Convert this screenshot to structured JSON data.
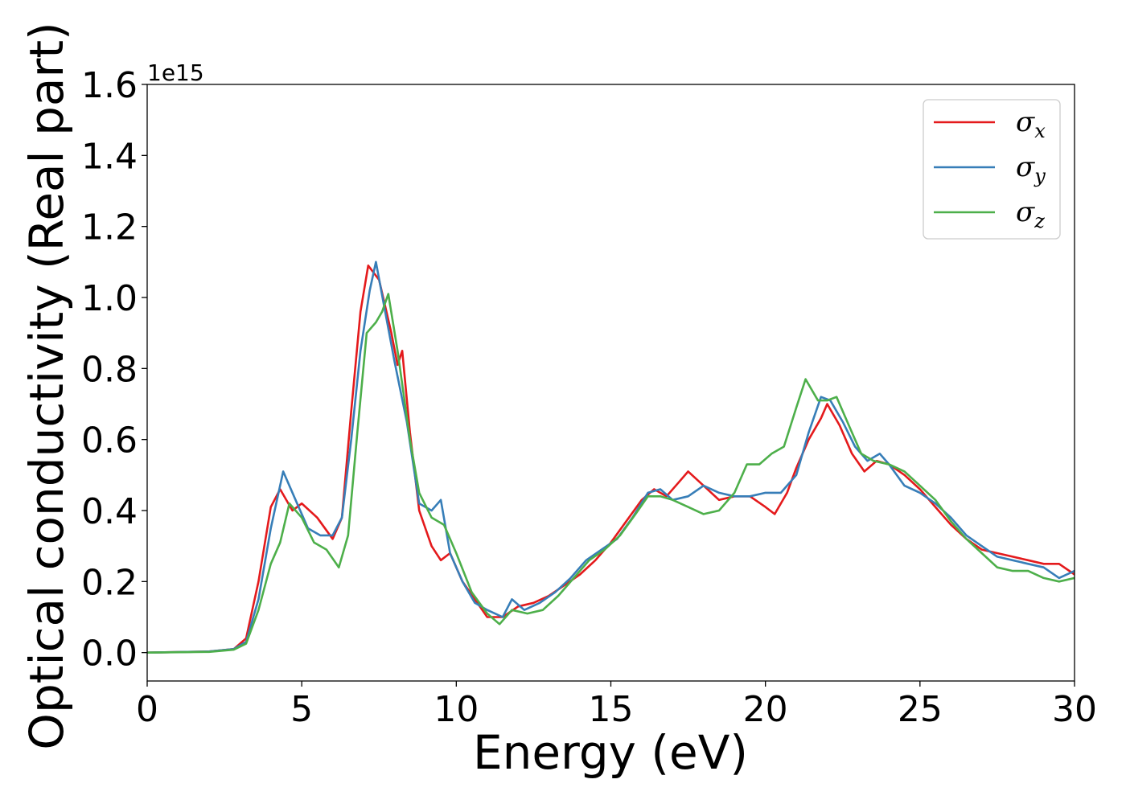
{
  "chart_data": {
    "type": "line",
    "xlabel": "Energy (eV)",
    "ylabel": "Optical conductivity (Real part)",
    "y_offset_label": "1e15",
    "xlim": [
      0,
      30
    ],
    "ylim": [
      -0.08,
      1.6
    ],
    "x_ticks": [
      0,
      5,
      10,
      15,
      20,
      25,
      30
    ],
    "x_tick_labels": [
      "0",
      "5",
      "10",
      "15",
      "20",
      "25",
      "30"
    ],
    "y_ticks": [
      0.0,
      0.2,
      0.4,
      0.6,
      0.8,
      1.0,
      1.2,
      1.4,
      1.6
    ],
    "y_tick_labels": [
      "0.0",
      "0.2",
      "0.4",
      "0.6",
      "0.8",
      "1.0",
      "1.2",
      "1.4",
      "1.6"
    ],
    "grid": false,
    "legend_position": "top-right",
    "series": [
      {
        "name": "σ",
        "subscript": "x",
        "color": "#e41a1c",
        "points": [
          [
            0,
            0
          ],
          [
            2,
            0.003
          ],
          [
            2.8,
            0.01
          ],
          [
            3.2,
            0.04
          ],
          [
            3.6,
            0.2
          ],
          [
            4.0,
            0.41
          ],
          [
            4.3,
            0.46
          ],
          [
            4.7,
            0.4
          ],
          [
            5.0,
            0.42
          ],
          [
            5.5,
            0.38
          ],
          [
            6.0,
            0.32
          ],
          [
            6.3,
            0.38
          ],
          [
            6.6,
            0.68
          ],
          [
            6.9,
            0.96
          ],
          [
            7.15,
            1.09
          ],
          [
            7.5,
            1.05
          ],
          [
            7.9,
            0.9
          ],
          [
            8.1,
            0.81
          ],
          [
            8.25,
            0.85
          ],
          [
            8.5,
            0.62
          ],
          [
            8.8,
            0.4
          ],
          [
            9.2,
            0.3
          ],
          [
            9.5,
            0.26
          ],
          [
            9.8,
            0.28
          ],
          [
            10.2,
            0.2
          ],
          [
            10.6,
            0.15
          ],
          [
            11.0,
            0.1
          ],
          [
            11.5,
            0.1
          ],
          [
            12.0,
            0.13
          ],
          [
            12.5,
            0.14
          ],
          [
            13.0,
            0.16
          ],
          [
            13.5,
            0.19
          ],
          [
            14.0,
            0.22
          ],
          [
            14.5,
            0.26
          ],
          [
            15.0,
            0.31
          ],
          [
            15.5,
            0.37
          ],
          [
            16.0,
            0.43
          ],
          [
            16.4,
            0.46
          ],
          [
            16.8,
            0.44
          ],
          [
            17.2,
            0.48
          ],
          [
            17.5,
            0.51
          ],
          [
            18.0,
            0.47
          ],
          [
            18.5,
            0.43
          ],
          [
            19.0,
            0.44
          ],
          [
            19.5,
            0.44
          ],
          [
            20.0,
            0.41
          ],
          [
            20.3,
            0.39
          ],
          [
            20.7,
            0.45
          ],
          [
            21.0,
            0.52
          ],
          [
            21.4,
            0.6
          ],
          [
            21.8,
            0.66
          ],
          [
            22.0,
            0.7
          ],
          [
            22.4,
            0.64
          ],
          [
            22.8,
            0.56
          ],
          [
            23.2,
            0.51
          ],
          [
            23.6,
            0.54
          ],
          [
            24.0,
            0.53
          ],
          [
            24.5,
            0.5
          ],
          [
            25.0,
            0.46
          ],
          [
            25.5,
            0.41
          ],
          [
            26.0,
            0.36
          ],
          [
            26.5,
            0.32
          ],
          [
            27.0,
            0.29
          ],
          [
            27.5,
            0.28
          ],
          [
            28.0,
            0.27
          ],
          [
            28.5,
            0.26
          ],
          [
            29.0,
            0.25
          ],
          [
            29.5,
            0.25
          ],
          [
            30.0,
            0.22
          ]
        ]
      },
      {
        "name": "σ",
        "subscript": "y",
        "color": "#377eb8",
        "points": [
          [
            0,
            0
          ],
          [
            2,
            0.003
          ],
          [
            2.8,
            0.01
          ],
          [
            3.2,
            0.03
          ],
          [
            3.6,
            0.15
          ],
          [
            4.0,
            0.35
          ],
          [
            4.4,
            0.51
          ],
          [
            4.8,
            0.43
          ],
          [
            5.2,
            0.35
          ],
          [
            5.6,
            0.33
          ],
          [
            6.0,
            0.33
          ],
          [
            6.3,
            0.38
          ],
          [
            6.6,
            0.6
          ],
          [
            6.9,
            0.85
          ],
          [
            7.2,
            1.02
          ],
          [
            7.4,
            1.1
          ],
          [
            7.7,
            0.96
          ],
          [
            8.0,
            0.82
          ],
          [
            8.4,
            0.65
          ],
          [
            8.8,
            0.42
          ],
          [
            9.2,
            0.4
          ],
          [
            9.5,
            0.43
          ],
          [
            9.8,
            0.28
          ],
          [
            10.2,
            0.2
          ],
          [
            10.6,
            0.14
          ],
          [
            11.0,
            0.12
          ],
          [
            11.5,
            0.1
          ],
          [
            11.8,
            0.15
          ],
          [
            12.2,
            0.12
          ],
          [
            12.7,
            0.14
          ],
          [
            13.2,
            0.17
          ],
          [
            13.7,
            0.21
          ],
          [
            14.2,
            0.26
          ],
          [
            14.7,
            0.29
          ],
          [
            15.2,
            0.32
          ],
          [
            15.7,
            0.38
          ],
          [
            16.2,
            0.45
          ],
          [
            16.6,
            0.46
          ],
          [
            17.0,
            0.43
          ],
          [
            17.5,
            0.44
          ],
          [
            18.0,
            0.47
          ],
          [
            18.5,
            0.45
          ],
          [
            19.0,
            0.44
          ],
          [
            19.5,
            0.44
          ],
          [
            20.0,
            0.45
          ],
          [
            20.5,
            0.45
          ],
          [
            21.0,
            0.5
          ],
          [
            21.4,
            0.62
          ],
          [
            21.8,
            0.72
          ],
          [
            22.1,
            0.71
          ],
          [
            22.5,
            0.65
          ],
          [
            22.9,
            0.58
          ],
          [
            23.3,
            0.54
          ],
          [
            23.7,
            0.56
          ],
          [
            24.0,
            0.53
          ],
          [
            24.5,
            0.47
          ],
          [
            25.0,
            0.45
          ],
          [
            25.5,
            0.42
          ],
          [
            26.0,
            0.38
          ],
          [
            26.5,
            0.33
          ],
          [
            27.0,
            0.3
          ],
          [
            27.5,
            0.27
          ],
          [
            28.0,
            0.26
          ],
          [
            28.5,
            0.25
          ],
          [
            29.0,
            0.24
          ],
          [
            29.5,
            0.21
          ],
          [
            30.0,
            0.23
          ]
        ]
      },
      {
        "name": "σ",
        "subscript": "z",
        "color": "#4daf4a",
        "points": [
          [
            0,
            0
          ],
          [
            2,
            0.002
          ],
          [
            2.8,
            0.008
          ],
          [
            3.2,
            0.025
          ],
          [
            3.6,
            0.12
          ],
          [
            4.0,
            0.25
          ],
          [
            4.3,
            0.31
          ],
          [
            4.6,
            0.42
          ],
          [
            5.0,
            0.38
          ],
          [
            5.4,
            0.31
          ],
          [
            5.8,
            0.29
          ],
          [
            6.2,
            0.24
          ],
          [
            6.5,
            0.33
          ],
          [
            6.8,
            0.62
          ],
          [
            7.1,
            0.9
          ],
          [
            7.4,
            0.93
          ],
          [
            7.6,
            0.96
          ],
          [
            7.8,
            1.01
          ],
          [
            8.1,
            0.85
          ],
          [
            8.5,
            0.6
          ],
          [
            8.8,
            0.45
          ],
          [
            9.2,
            0.38
          ],
          [
            9.6,
            0.36
          ],
          [
            10.0,
            0.28
          ],
          [
            10.5,
            0.17
          ],
          [
            11.0,
            0.11
          ],
          [
            11.4,
            0.08
          ],
          [
            11.8,
            0.12
          ],
          [
            12.3,
            0.11
          ],
          [
            12.8,
            0.12
          ],
          [
            13.3,
            0.16
          ],
          [
            13.8,
            0.21
          ],
          [
            14.3,
            0.26
          ],
          [
            14.8,
            0.29
          ],
          [
            15.3,
            0.33
          ],
          [
            15.8,
            0.39
          ],
          [
            16.2,
            0.44
          ],
          [
            16.6,
            0.44
          ],
          [
            17.0,
            0.43
          ],
          [
            17.5,
            0.41
          ],
          [
            18.0,
            0.39
          ],
          [
            18.5,
            0.4
          ],
          [
            19.0,
            0.45
          ],
          [
            19.4,
            0.53
          ],
          [
            19.8,
            0.53
          ],
          [
            20.2,
            0.56
          ],
          [
            20.6,
            0.58
          ],
          [
            21.0,
            0.69
          ],
          [
            21.3,
            0.77
          ],
          [
            21.7,
            0.71
          ],
          [
            22.0,
            0.71
          ],
          [
            22.3,
            0.72
          ],
          [
            22.7,
            0.64
          ],
          [
            23.1,
            0.56
          ],
          [
            23.5,
            0.54
          ],
          [
            24.0,
            0.53
          ],
          [
            24.5,
            0.51
          ],
          [
            25.0,
            0.47
          ],
          [
            25.5,
            0.43
          ],
          [
            26.0,
            0.37
          ],
          [
            26.5,
            0.32
          ],
          [
            27.0,
            0.28
          ],
          [
            27.5,
            0.24
          ],
          [
            28.0,
            0.23
          ],
          [
            28.5,
            0.23
          ],
          [
            29.0,
            0.21
          ],
          [
            29.5,
            0.2
          ],
          [
            30.0,
            0.21
          ]
        ]
      }
    ]
  }
}
